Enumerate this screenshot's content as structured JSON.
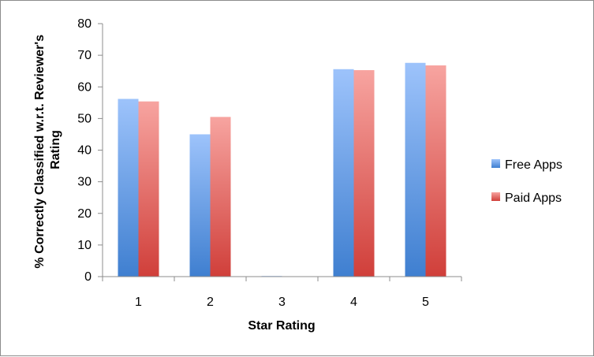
{
  "chart_data": {
    "type": "bar",
    "categories": [
      "1",
      "2",
      "3",
      "4",
      "5"
    ],
    "series": [
      {
        "name": "Free Apps",
        "values": [
          56.2,
          45.0,
          0.2,
          65.6,
          67.6
        ],
        "color_top": "#9dc3fb",
        "color_bottom": "#3f7fd0"
      },
      {
        "name": "Paid Apps",
        "values": [
          55.4,
          50.5,
          0.0,
          65.3,
          66.8
        ],
        "color_top": "#f7a4a0",
        "color_bottom": "#d03f3a"
      }
    ],
    "xlabel": "Star Rating",
    "ylabel_lines": [
      "% Correctly Classified w.r.t. Reviewer's",
      "Rating"
    ],
    "ylim": [
      0,
      80
    ],
    "yticks": [
      "0",
      "10",
      "20",
      "30",
      "40",
      "50",
      "60",
      "70",
      "80"
    ],
    "legend_position": "right",
    "grid": false
  }
}
